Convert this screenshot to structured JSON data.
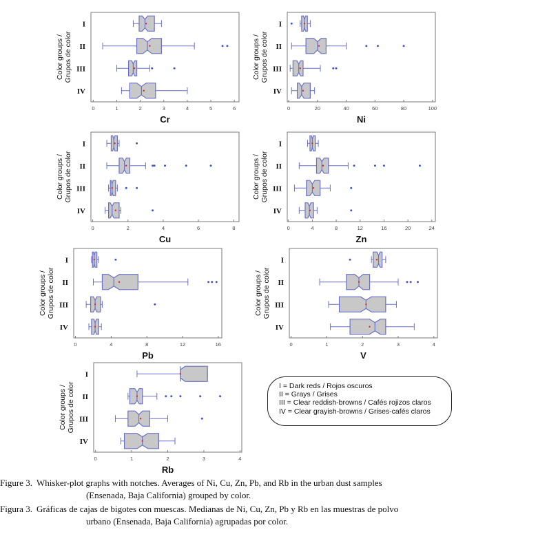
{
  "ylabel": "Color groups / Grupos de color",
  "chart_data": [
    {
      "type": "box",
      "element": "Cr",
      "xticks": [
        0,
        1,
        2,
        3,
        4,
        5,
        6
      ],
      "xlim": [
        -0.1,
        6.2
      ],
      "groups": [
        {
          "label": "I",
          "whisker_low": 1.7,
          "q1": 1.95,
          "median": 2.2,
          "q3": 2.6,
          "whisker_high": 2.9,
          "mean": 2.25,
          "outliers": []
        },
        {
          "label": "II",
          "whisker_low": 0.4,
          "q1": 1.85,
          "median": 2.3,
          "q3": 2.9,
          "whisker_high": 4.3,
          "mean": 2.4,
          "outliers": [
            5.5,
            5.7
          ]
        },
        {
          "label": "III",
          "whisker_low": 1.0,
          "q1": 1.5,
          "median": 1.7,
          "q3": 1.85,
          "whisker_high": 2.4,
          "mean": 1.75,
          "outliers": [
            2.5,
            3.45
          ]
        },
        {
          "label": "IV",
          "whisker_low": 1.2,
          "q1": 1.55,
          "median": 2.05,
          "q3": 2.65,
          "whisker_high": 4.0,
          "mean": 2.15,
          "outliers": []
        }
      ]
    },
    {
      "type": "box",
      "element": "Ni",
      "xticks": [
        0,
        20,
        40,
        60,
        80,
        100
      ],
      "xlim": [
        -1,
        102
      ],
      "groups": [
        {
          "label": "I",
          "whisker_low": 8,
          "q1": 9,
          "median": 11,
          "q3": 13,
          "whisker_high": 15,
          "mean": 11,
          "outliers": [
            2
          ]
        },
        {
          "label": "II",
          "whisker_low": 2,
          "q1": 12,
          "median": 20,
          "q3": 26,
          "whisker_high": 40,
          "mean": 21,
          "outliers": [
            54,
            62,
            80
          ]
        },
        {
          "label": "III",
          "whisker_low": 1,
          "q1": 3,
          "median": 7,
          "q3": 10,
          "whisker_high": 22,
          "mean": 8,
          "outliers": [
            31,
            33
          ]
        },
        {
          "label": "IV",
          "whisker_low": 2,
          "q1": 6,
          "median": 9,
          "q3": 15,
          "whisker_high": 18,
          "mean": 10,
          "outliers": []
        }
      ]
    },
    {
      "type": "box",
      "element": "Cu",
      "xticks": [
        0,
        2,
        4,
        6,
        8
      ],
      "xlim": [
        -0.1,
        8.3
      ],
      "groups": [
        {
          "label": "I",
          "whisker_low": 0.8,
          "q1": 1.05,
          "median": 1.2,
          "q3": 1.4,
          "whisker_high": 1.5,
          "mean": 1.25,
          "outliers": [
            2.5
          ]
        },
        {
          "label": "II",
          "whisker_low": 0.8,
          "q1": 1.5,
          "median": 1.8,
          "q3": 2.1,
          "whisker_high": 3.0,
          "mean": 1.9,
          "outliers": [
            3.4,
            3.5,
            4.1,
            5.3,
            6.7
          ]
        },
        {
          "label": "III",
          "whisker_low": 0.9,
          "q1": 1.0,
          "median": 1.1,
          "q3": 1.3,
          "whisker_high": 1.4,
          "mean": 1.1,
          "outliers": [
            1.9,
            2.5
          ]
        },
        {
          "label": "IV",
          "whisker_low": 0.7,
          "q1": 0.9,
          "median": 1.1,
          "q3": 1.5,
          "whisker_high": 1.6,
          "mean": 1.3,
          "outliers": [
            3.4
          ]
        }
      ]
    },
    {
      "type": "box",
      "element": "Zn",
      "xticks": [
        0,
        4,
        8,
        12,
        16,
        20,
        24
      ],
      "xlim": [
        -0.2,
        24.6
      ],
      "groups": [
        {
          "label": "I",
          "whisker_low": 3.2,
          "q1": 3.6,
          "median": 4.0,
          "q3": 4.5,
          "whisker_high": 5.0,
          "mean": 4.0,
          "outliers": []
        },
        {
          "label": "II",
          "whisker_low": 1.8,
          "q1": 4.7,
          "median": 5.6,
          "q3": 6.7,
          "whisker_high": 10,
          "mean": 5.8,
          "outliers": [
            11,
            14.5,
            16,
            22
          ]
        },
        {
          "label": "III",
          "whisker_low": 1.0,
          "q1": 3.0,
          "median": 4.0,
          "q3": 5.3,
          "whisker_high": 7.0,
          "mean": 4.2,
          "outliers": [
            10.5
          ]
        },
        {
          "label": "IV",
          "whisker_low": 1.8,
          "q1": 2.8,
          "median": 3.5,
          "q3": 4.2,
          "whisker_high": 4.8,
          "mean": 3.6,
          "outliers": [
            10.5
          ]
        }
      ]
    },
    {
      "type": "box",
      "element": "Pb",
      "xticks": [
        0,
        4,
        8,
        12,
        16
      ],
      "xlim": [
        -0.2,
        16.4
      ],
      "groups": [
        {
          "label": "I",
          "whisker_low": 1.8,
          "q1": 1.9,
          "median": 2.1,
          "q3": 2.4,
          "whisker_high": 2.6,
          "mean": 2.1,
          "outliers": [
            4.5
          ]
        },
        {
          "label": "II",
          "whisker_low": 2.0,
          "q1": 3.0,
          "median": 4.3,
          "q3": 7.0,
          "whisker_high": 12.6,
          "mean": 4.9,
          "outliers": [
            14.9,
            15.3,
            15.8
          ]
        },
        {
          "label": "III",
          "whisker_low": 1.2,
          "q1": 1.7,
          "median": 2.2,
          "q3": 2.8,
          "whisker_high": 3.0,
          "mean": 2.2,
          "outliers": [
            8.9
          ]
        },
        {
          "label": "IV",
          "whisker_low": 1.5,
          "q1": 1.8,
          "median": 2.2,
          "q3": 2.6,
          "whisker_high": 2.9,
          "mean": 2.2,
          "outliers": []
        }
      ]
    },
    {
      "type": "box",
      "element": "V",
      "xticks": [
        0,
        1,
        2,
        3,
        4
      ],
      "xlim": [
        -0.05,
        4.1
      ],
      "groups": [
        {
          "label": "I",
          "whisker_low": 2.25,
          "q1": 2.3,
          "median": 2.45,
          "q3": 2.55,
          "whisker_high": 2.65,
          "mean": 2.4,
          "outliers": [
            1.65
          ]
        },
        {
          "label": "II",
          "whisker_low": 0.8,
          "q1": 1.55,
          "median": 1.9,
          "q3": 2.2,
          "whisker_high": 3.0,
          "mean": 1.9,
          "outliers": [
            3.25,
            3.35,
            3.55
          ]
        },
        {
          "label": "III",
          "whisker_low": 1.05,
          "q1": 1.35,
          "median": 2.1,
          "q3": 2.65,
          "whisker_high": 2.95,
          "mean": 2.1,
          "outliers": []
        },
        {
          "label": "IV",
          "whisker_low": 1.1,
          "q1": 1.65,
          "median": 2.35,
          "q3": 2.65,
          "whisker_high": 3.45,
          "mean": 2.2,
          "outliers": []
        }
      ]
    },
    {
      "type": "box",
      "element": "Rb",
      "xticks": [
        0,
        1,
        2,
        3,
        4
      ],
      "xlim": [
        -0.05,
        4.05
      ],
      "groups": [
        {
          "label": "I",
          "whisker_low": 1.15,
          "q1": 2.35,
          "median": 2.35,
          "q3": 3.1,
          "whisker_high": 3.1,
          "mean": 2.35,
          "outliers": []
        },
        {
          "label": "II",
          "whisker_low": 0.9,
          "q1": 0.95,
          "median": 1.15,
          "q3": 1.3,
          "whisker_high": 1.7,
          "mean": 1.15,
          "outliers": [
            1.95,
            2.1,
            2.35,
            2.9,
            3.45
          ]
        },
        {
          "label": "III",
          "whisker_low": 0.55,
          "q1": 0.9,
          "median": 1.2,
          "q3": 1.5,
          "whisker_high": 2.0,
          "mean": 1.25,
          "outliers": [
            2.95
          ]
        },
        {
          "label": "IV",
          "whisker_low": 0.7,
          "q1": 0.8,
          "median": 1.3,
          "q3": 1.75,
          "whisker_high": 2.2,
          "mean": 1.3,
          "outliers": []
        }
      ]
    }
  ],
  "legend": {
    "items": [
      "I = Dark reds / Rojos oscuros",
      "II = Grays / Grises",
      "III = Clear reddish-browns / Cafés rojizos claros",
      "IV = Clear grayish-browns / Grises-cafés claros"
    ]
  },
  "caption": {
    "en_label": "Figure 3.",
    "en_line1": "Whisker-plot graphs with notches. Averages of Ni, Cu, Zn, Pb, and Rb in the urban dust samples",
    "en_line2": "(Ensenada, Baja California) grouped by color.",
    "es_label": "Figura 3.",
    "es_line1": "Gráficas de cajas de bigotes con muescas. Medianas de Ni, Cu, Zn, Pb y Rb en las muestras de polvo",
    "es_line2": "urbano (Ensenada, Baja California) agrupadas por color."
  }
}
